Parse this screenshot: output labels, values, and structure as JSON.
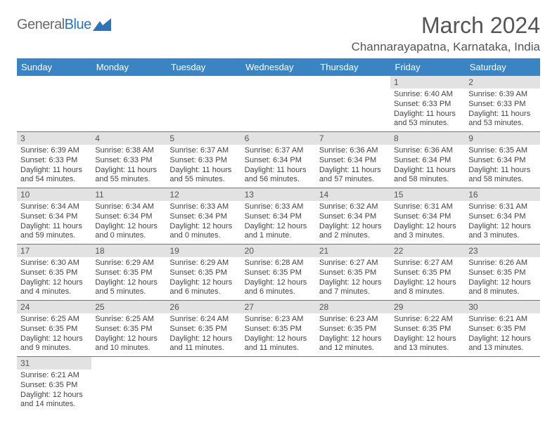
{
  "logo": {
    "text_gray": "General",
    "text_blue": "Blue"
  },
  "title": "March 2024",
  "location": "Channarayapatna, Karnataka, India",
  "colors": {
    "header_bg": "#3a84c4",
    "header_text": "#ffffff",
    "daynum_bg": "#e2e2e2",
    "row_divider": "#3a84c4",
    "body_text": "#444444",
    "title_text": "#555555"
  },
  "weekdays": [
    "Sunday",
    "Monday",
    "Tuesday",
    "Wednesday",
    "Thursday",
    "Friday",
    "Saturday"
  ],
  "leading_blanks": 5,
  "days": [
    {
      "n": 1,
      "sunrise": "6:40 AM",
      "sunset": "6:33 PM",
      "day_h": 11,
      "day_m": 53
    },
    {
      "n": 2,
      "sunrise": "6:39 AM",
      "sunset": "6:33 PM",
      "day_h": 11,
      "day_m": 53
    },
    {
      "n": 3,
      "sunrise": "6:39 AM",
      "sunset": "6:33 PM",
      "day_h": 11,
      "day_m": 54
    },
    {
      "n": 4,
      "sunrise": "6:38 AM",
      "sunset": "6:33 PM",
      "day_h": 11,
      "day_m": 55
    },
    {
      "n": 5,
      "sunrise": "6:37 AM",
      "sunset": "6:33 PM",
      "day_h": 11,
      "day_m": 55
    },
    {
      "n": 6,
      "sunrise": "6:37 AM",
      "sunset": "6:34 PM",
      "day_h": 11,
      "day_m": 56
    },
    {
      "n": 7,
      "sunrise": "6:36 AM",
      "sunset": "6:34 PM",
      "day_h": 11,
      "day_m": 57
    },
    {
      "n": 8,
      "sunrise": "6:36 AM",
      "sunset": "6:34 PM",
      "day_h": 11,
      "day_m": 58
    },
    {
      "n": 9,
      "sunrise": "6:35 AM",
      "sunset": "6:34 PM",
      "day_h": 11,
      "day_m": 58
    },
    {
      "n": 10,
      "sunrise": "6:34 AM",
      "sunset": "6:34 PM",
      "day_h": 11,
      "day_m": 59
    },
    {
      "n": 11,
      "sunrise": "6:34 AM",
      "sunset": "6:34 PM",
      "day_h": 12,
      "day_m": 0
    },
    {
      "n": 12,
      "sunrise": "6:33 AM",
      "sunset": "6:34 PM",
      "day_h": 12,
      "day_m": 0
    },
    {
      "n": 13,
      "sunrise": "6:33 AM",
      "sunset": "6:34 PM",
      "day_h": 12,
      "day_m": 1
    },
    {
      "n": 14,
      "sunrise": "6:32 AM",
      "sunset": "6:34 PM",
      "day_h": 12,
      "day_m": 2
    },
    {
      "n": 15,
      "sunrise": "6:31 AM",
      "sunset": "6:34 PM",
      "day_h": 12,
      "day_m": 3
    },
    {
      "n": 16,
      "sunrise": "6:31 AM",
      "sunset": "6:34 PM",
      "day_h": 12,
      "day_m": 3
    },
    {
      "n": 17,
      "sunrise": "6:30 AM",
      "sunset": "6:35 PM",
      "day_h": 12,
      "day_m": 4
    },
    {
      "n": 18,
      "sunrise": "6:29 AM",
      "sunset": "6:35 PM",
      "day_h": 12,
      "day_m": 5
    },
    {
      "n": 19,
      "sunrise": "6:29 AM",
      "sunset": "6:35 PM",
      "day_h": 12,
      "day_m": 6
    },
    {
      "n": 20,
      "sunrise": "6:28 AM",
      "sunset": "6:35 PM",
      "day_h": 12,
      "day_m": 6
    },
    {
      "n": 21,
      "sunrise": "6:27 AM",
      "sunset": "6:35 PM",
      "day_h": 12,
      "day_m": 7
    },
    {
      "n": 22,
      "sunrise": "6:27 AM",
      "sunset": "6:35 PM",
      "day_h": 12,
      "day_m": 8
    },
    {
      "n": 23,
      "sunrise": "6:26 AM",
      "sunset": "6:35 PM",
      "day_h": 12,
      "day_m": 8
    },
    {
      "n": 24,
      "sunrise": "6:25 AM",
      "sunset": "6:35 PM",
      "day_h": 12,
      "day_m": 9
    },
    {
      "n": 25,
      "sunrise": "6:25 AM",
      "sunset": "6:35 PM",
      "day_h": 12,
      "day_m": 10
    },
    {
      "n": 26,
      "sunrise": "6:24 AM",
      "sunset": "6:35 PM",
      "day_h": 12,
      "day_m": 11
    },
    {
      "n": 27,
      "sunrise": "6:23 AM",
      "sunset": "6:35 PM",
      "day_h": 12,
      "day_m": 11
    },
    {
      "n": 28,
      "sunrise": "6:23 AM",
      "sunset": "6:35 PM",
      "day_h": 12,
      "day_m": 12
    },
    {
      "n": 29,
      "sunrise": "6:22 AM",
      "sunset": "6:35 PM",
      "day_h": 12,
      "day_m": 13
    },
    {
      "n": 30,
      "sunrise": "6:21 AM",
      "sunset": "6:35 PM",
      "day_h": 12,
      "day_m": 13
    },
    {
      "n": 31,
      "sunrise": "6:21 AM",
      "sunset": "6:35 PM",
      "day_h": 12,
      "day_m": 14
    }
  ],
  "labels": {
    "sunrise": "Sunrise:",
    "sunset": "Sunset:",
    "daylight": "Daylight:",
    "hours": "hours",
    "and": "and",
    "minutes": "minutes."
  }
}
